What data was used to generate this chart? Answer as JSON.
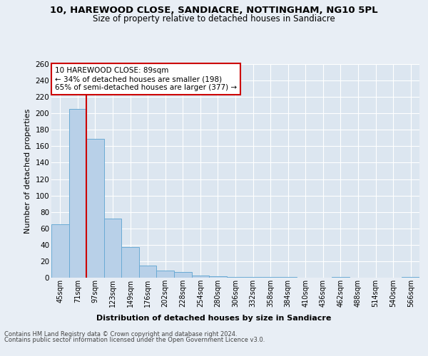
{
  "title": "10, HAREWOOD CLOSE, SANDIACRE, NOTTINGHAM, NG10 5PL",
  "subtitle": "Size of property relative to detached houses in Sandiacre",
  "xlabel": "Distribution of detached houses by size in Sandiacre",
  "ylabel": "Number of detached properties",
  "categories": [
    "45sqm",
    "71sqm",
    "97sqm",
    "123sqm",
    "149sqm",
    "176sqm",
    "202sqm",
    "228sqm",
    "254sqm",
    "280sqm",
    "306sqm",
    "332sqm",
    "358sqm",
    "384sqm",
    "410sqm",
    "436sqm",
    "462sqm",
    "488sqm",
    "514sqm",
    "540sqm",
    "566sqm"
  ],
  "values": [
    65,
    205,
    169,
    72,
    37,
    15,
    9,
    7,
    3,
    2,
    1,
    1,
    1,
    1,
    0,
    0,
    1,
    0,
    0,
    0,
    1
  ],
  "bar_color": "#b8d0e8",
  "bar_edge_color": "#6aaad4",
  "background_color": "#e8eef5",
  "plot_bg_color": "#dce6f0",
  "grid_color": "#ffffff",
  "red_line_x": 1.5,
  "annotation_line1": "10 HAREWOOD CLOSE: 89sqm",
  "annotation_line2": "← 34% of detached houses are smaller (198)",
  "annotation_line3": "65% of semi-detached houses are larger (377) →",
  "annotation_box_color": "#ffffff",
  "annotation_border_color": "#cc0000",
  "footer_line1": "Contains HM Land Registry data © Crown copyright and database right 2024.",
  "footer_line2": "Contains public sector information licensed under the Open Government Licence v3.0.",
  "ylim": [
    0,
    260
  ],
  "yticks": [
    0,
    20,
    40,
    60,
    80,
    100,
    120,
    140,
    160,
    180,
    200,
    220,
    240,
    260
  ]
}
